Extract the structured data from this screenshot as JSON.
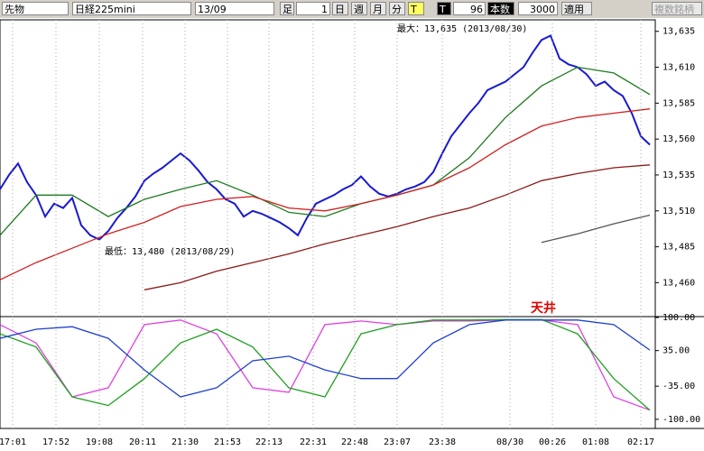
{
  "toolbar": {
    "market": "先物",
    "product": "日経225mini",
    "contract": "13/09",
    "bar_label": "足",
    "bar_size": "1",
    "day": "日",
    "week": "週",
    "month": "月",
    "minute": "分",
    "tick": "T",
    "t_button": "T",
    "count": "96",
    "count_label": "本数",
    "bars": "3000",
    "apply": "適用",
    "multi": "複数銘柄"
  },
  "chart_data": [
    {
      "type": "line",
      "annotations": {
        "high": "最大：13,635 (2013/08/30)",
        "low": "最低：13,480 (2013/08/29)"
      },
      "ylim": [
        13437,
        13643
      ],
      "xlim": [
        0,
        72.5
      ],
      "yticks": [
        {
          "value": 13635,
          "label": "13,635"
        },
        {
          "value": 13610,
          "label": "13,610"
        },
        {
          "value": 13585,
          "label": "13,585"
        },
        {
          "value": 13560,
          "label": "13,560"
        },
        {
          "value": 13535,
          "label": "13,535"
        },
        {
          "value": 13510,
          "label": "13,510"
        },
        {
          "value": 13485,
          "label": "13,485"
        },
        {
          "value": 13460,
          "label": "13,460"
        }
      ],
      "series": [
        {
          "color": "#1a1ad0",
          "values": [
            13525,
            13535,
            13543,
            13530,
            13521,
            13506,
            13515,
            13512,
            13519,
            13500,
            13493,
            13490,
            13496,
            13505,
            13512,
            13520,
            13531,
            13536,
            13540,
            13545,
            13550,
            13545,
            13538,
            13530,
            13525,
            13518,
            13515,
            13506,
            13510,
            13508,
            13505,
            13502,
            13498,
            13493,
            13505,
            13515,
            13518,
            13521,
            13525,
            13528,
            13534,
            13527,
            13522,
            13520,
            13522,
            13525,
            13527,
            13530,
            13537,
            13550,
            13562,
            13570,
            13578,
            13585,
            13594,
            13597,
            13600,
            13605,
            13610,
            13620,
            13629,
            13632,
            13616,
            13612,
            13610,
            13605,
            13597,
            13600,
            13594,
            13590,
            13578,
            13562,
            13556
          ]
        },
        {
          "color": "#1e7a1e",
          "x": [
            0,
            4,
            8,
            12,
            16,
            20,
            24,
            28,
            32,
            36,
            40,
            44,
            48,
            52,
            56,
            60,
            64,
            68,
            72
          ],
          "values": [
            13493,
            13521,
            13521,
            13506,
            13518,
            13525,
            13531,
            13521,
            13509,
            13506,
            13515,
            13521,
            13528,
            13547,
            13575,
            13597,
            13610,
            13606,
            13591
          ]
        },
        {
          "color": "#d02020",
          "x": [
            0,
            4,
            8,
            12,
            16,
            20,
            24,
            28,
            32,
            36,
            40,
            44,
            48,
            52,
            56,
            60,
            64,
            68,
            72
          ],
          "values": [
            13462,
            13474,
            13484,
            13494,
            13502,
            13513,
            13518,
            13520,
            13512,
            13510,
            13515,
            13521,
            13528,
            13540,
            13556,
            13569,
            13575,
            13578,
            13581
          ]
        },
        {
          "color": "#8b1a1a",
          "x": [
            0,
            4,
            8,
            12,
            16,
            20,
            24,
            28,
            32,
            36,
            40,
            44,
            48,
            52,
            56,
            60,
            64,
            68,
            72
          ],
          "values": [
            null,
            null,
            null,
            null,
            13455,
            13460,
            13468,
            13474,
            13480,
            13487,
            13493,
            13499,
            13506,
            13512,
            13521,
            13531,
            13536,
            13540,
            13542
          ]
        },
        {
          "color": "#555555",
          "x": [
            0,
            4,
            8,
            12,
            16,
            20,
            24,
            28,
            32,
            36,
            40,
            44,
            48,
            52,
            56,
            60,
            64,
            68,
            72
          ],
          "values": [
            null,
            null,
            null,
            null,
            null,
            null,
            null,
            null,
            null,
            null,
            null,
            null,
            null,
            null,
            null,
            13488,
            13494,
            13501,
            13507
          ]
        }
      ]
    },
    {
      "type": "line",
      "annotations": {
        "top": "天井"
      },
      "ylim": [
        -118,
        100
      ],
      "xlim": [
        0,
        72.5
      ],
      "yticks": [
        {
          "value": 100,
          "label": "100.00"
        },
        {
          "value": 35,
          "label": "35.00"
        },
        {
          "value": -35,
          "label": "-35.00"
        },
        {
          "value": -100,
          "label": "-100.00"
        }
      ],
      "xticks": [
        {
          "value": 1.4,
          "label": "17:01"
        },
        {
          "value": 6.2,
          "label": "17:52"
        },
        {
          "value": 11,
          "label": "19:08"
        },
        {
          "value": 15.8,
          "label": "20:11"
        },
        {
          "value": 20.5,
          "label": "21:30"
        },
        {
          "value": 25.2,
          "label": "21:53"
        },
        {
          "value": 29.8,
          "label": "22:13"
        },
        {
          "value": 34.7,
          "label": "22:31"
        },
        {
          "value": 39.3,
          "label": "22:48"
        },
        {
          "value": 44,
          "label": "23:07"
        },
        {
          "value": 49,
          "label": "23:38"
        },
        {
          "value": 56.5,
          "label": "08/30"
        },
        {
          "value": 61.2,
          "label": "00:26"
        },
        {
          "value": 66,
          "label": "01:08"
        },
        {
          "value": 71,
          "label": "02:17"
        }
      ],
      "series": [
        {
          "color": "#e040e0",
          "x": [
            0,
            4,
            8,
            12,
            16,
            20,
            24,
            28,
            32,
            36,
            40,
            44,
            48,
            52,
            56,
            60,
            64,
            68,
            72
          ],
          "values": [
            86,
            50,
            -56,
            -38,
            86,
            95,
            68,
            -38,
            -47,
            86,
            93,
            86,
            93,
            93,
            95,
            95,
            86,
            -56,
            -82
          ]
        },
        {
          "color": "#20a020",
          "x": [
            0,
            4,
            8,
            12,
            16,
            20,
            24,
            28,
            32,
            36,
            40,
            44,
            48,
            52,
            56,
            60,
            64,
            68,
            72
          ],
          "values": [
            68,
            42,
            -56,
            -73,
            -20,
            50,
            77,
            42,
            -38,
            -56,
            68,
            86,
            95,
            95,
            96,
            96,
            68,
            -20,
            -82
          ]
        },
        {
          "color": "#2040d0",
          "x": [
            0,
            4,
            8,
            12,
            16,
            20,
            24,
            28,
            32,
            36,
            40,
            44,
            48,
            52,
            56,
            60,
            64,
            68,
            72
          ],
          "values": [
            59,
            77,
            82,
            59,
            -3,
            -56,
            -38,
            15,
            24,
            -3,
            -20,
            -20,
            50,
            86,
            95,
            95,
            95,
            86,
            36
          ]
        }
      ]
    }
  ]
}
